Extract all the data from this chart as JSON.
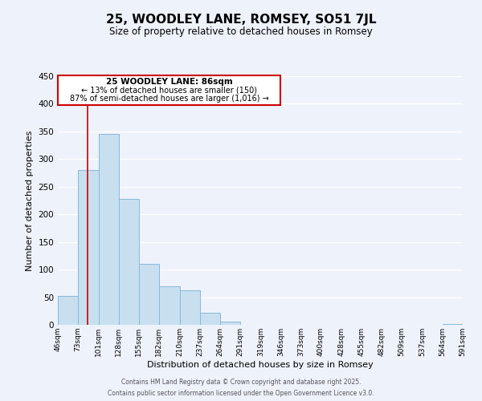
{
  "title": "25, WOODLEY LANE, ROMSEY, SO51 7JL",
  "subtitle": "Size of property relative to detached houses in Romsey",
  "xlabel": "Distribution of detached houses by size in Romsey",
  "ylabel": "Number of detached properties",
  "bar_color": "#c8dff0",
  "bar_edge_color": "#8ab8d8",
  "background_color": "#edf2fb",
  "grid_color": "#ffffff",
  "bins": [
    46,
    73,
    101,
    128,
    155,
    182,
    210,
    237,
    264,
    291,
    319,
    346,
    373,
    400,
    428,
    455,
    482,
    509,
    537,
    564,
    591
  ],
  "counts": [
    52,
    280,
    345,
    228,
    110,
    70,
    63,
    22,
    6,
    0,
    0,
    0,
    0,
    0,
    0,
    0,
    0,
    0,
    0,
    2
  ],
  "red_line_x": 86,
  "ylim": [
    0,
    450
  ],
  "yticks": [
    0,
    50,
    100,
    150,
    200,
    250,
    300,
    350,
    400,
    450
  ],
  "annotation_title": "25 WOODLEY LANE: 86sqm",
  "annotation_line1": "← 13% of detached houses are smaller (150)",
  "annotation_line2": "87% of semi-detached houses are larger (1,016) →",
  "annotation_box_color": "#ffffff",
  "annotation_box_edge_color": "#cc0000",
  "footer_line1": "Contains HM Land Registry data © Crown copyright and database right 2025.",
  "footer_line2": "Contains public sector information licensed under the Open Government Licence v3.0.",
  "tick_labels": [
    "46sqm",
    "73sqm",
    "101sqm",
    "128sqm",
    "155sqm",
    "182sqm",
    "210sqm",
    "237sqm",
    "264sqm",
    "291sqm",
    "319sqm",
    "346sqm",
    "373sqm",
    "400sqm",
    "428sqm",
    "455sqm",
    "482sqm",
    "509sqm",
    "537sqm",
    "564sqm",
    "591sqm"
  ]
}
